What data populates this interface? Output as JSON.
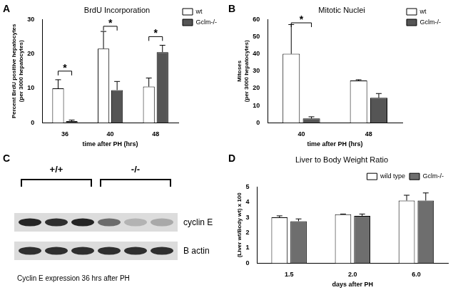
{
  "chart_data": [
    {
      "panel": "A",
      "type": "bar",
      "title": "BrdU Incorporation",
      "x_label": "time after PH (hrs)",
      "y_label": [
        "Percent BrdU positive hepatocytes",
        "(per 3000 hepatocytes)"
      ],
      "categories": [
        "36",
        "40",
        "48"
      ],
      "series": [
        {
          "name": "wt",
          "color": "#ffffff",
          "values": [
            10,
            21.5,
            10.5
          ],
          "errors": [
            2.5,
            5,
            2.5
          ]
        },
        {
          "name": "Gclm-/-",
          "color": "#555555",
          "values": [
            0.5,
            9.5,
            20.5
          ],
          "errors": [
            0.3,
            2.5,
            2
          ]
        }
      ],
      "ylim": [
        0,
        30
      ],
      "yticks": [
        0,
        10,
        20,
        30
      ],
      "grid": false,
      "legend": "right",
      "annotations": [
        {
          "text": "*",
          "category": "36",
          "y": 15
        },
        {
          "text": "*",
          "category": "40",
          "y": 28
        },
        {
          "text": "*",
          "category": "48",
          "y": 25
        }
      ]
    },
    {
      "panel": "B",
      "type": "bar",
      "title": "Mitotic Nuclei",
      "x_label": "time after PH (hrs)",
      "y_label": [
        "Mitoses",
        "(per 3000 hepatocytes)"
      ],
      "categories": [
        "40",
        "48"
      ],
      "series": [
        {
          "name": "wt",
          "color": "#ffffff",
          "values": [
            40,
            24.5
          ],
          "errors": [
            17,
            0.5
          ]
        },
        {
          "name": "Gclm-/-",
          "color": "#555555",
          "values": [
            2.5,
            14.5
          ],
          "errors": [
            1,
            2.5
          ]
        }
      ],
      "ylim": [
        0,
        60
      ],
      "yticks": [
        0,
        10,
        20,
        30,
        40,
        50,
        60
      ],
      "grid": false,
      "legend": "right",
      "annotations": [
        {
          "text": "*",
          "category": "40",
          "y": 58
        }
      ]
    },
    {
      "panel": "D",
      "type": "bar",
      "title": "Liver to Body Weight Ratio",
      "x_label": "days after PH",
      "y_label": [
        "(Liver wt/Body wt) x 100"
      ],
      "categories": [
        "1.5",
        "2.0",
        "6.0"
      ],
      "series": [
        {
          "name": "wild type",
          "color": "#ffffff",
          "values": [
            3.0,
            3.2,
            4.1
          ],
          "errors": [
            0.1,
            0.02,
            0.35
          ]
        },
        {
          "name": "Gclm-/-",
          "color": "#6e6e6e",
          "values": [
            2.75,
            3.1,
            4.1
          ],
          "errors": [
            0.15,
            0.12,
            0.5
          ]
        }
      ],
      "ylim": [
        0,
        5
      ],
      "yticks": [
        0,
        1,
        2,
        3,
        4,
        5
      ],
      "grid": false,
      "legend": "top-right",
      "annotations": []
    }
  ],
  "blot": {
    "panel": "C",
    "groups": [
      "+/+",
      "-/-"
    ],
    "rows": [
      {
        "label": "cyclin E",
        "intensities": [
          0.9,
          0.85,
          0.9,
          0.55,
          0.2,
          0.25
        ]
      },
      {
        "label": "B actin",
        "intensities": [
          0.85,
          0.85,
          0.85,
          0.85,
          0.85,
          0.85
        ]
      }
    ],
    "caption": "Cyclin E expression 36 hrs after PH"
  }
}
